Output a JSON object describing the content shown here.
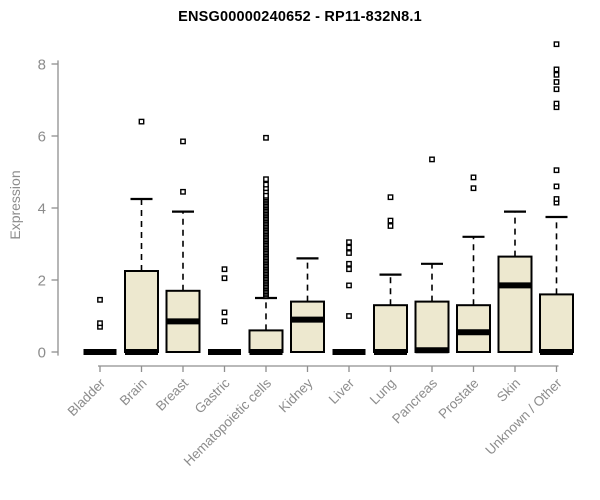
{
  "page": {
    "background": "#ffffff"
  },
  "chart_data": {
    "type": "boxplot",
    "title": "ENSG00000240652 - RP11-832N8.1",
    "ylabel": "Expression",
    "ylim": [
      0,
      8.8
    ],
    "yticks": [
      0,
      2,
      4,
      6,
      8
    ],
    "grid": false,
    "legend": "none",
    "categories": [
      "Bladder",
      "Brain",
      "Breast",
      "Gastric",
      "Hematopoietic cells",
      "Kidney",
      "Liver",
      "Lung",
      "Pancreas",
      "Prostate",
      "Skin",
      "Unknown / Other"
    ],
    "series": [
      {
        "category": "Bladder",
        "q1": 0,
        "median": 0,
        "q3": 0,
        "whisker_low": 0,
        "whisker_high": 0,
        "outliers": [
          0.7,
          0.8,
          1.45
        ]
      },
      {
        "category": "Brain",
        "q1": 0,
        "median": 0,
        "q3": 2.25,
        "whisker_low": 0,
        "whisker_high": 4.25,
        "outliers": [
          6.4
        ]
      },
      {
        "category": "Breast",
        "q1": 0,
        "median": 0.85,
        "q3": 1.7,
        "whisker_low": 0,
        "whisker_high": 3.9,
        "outliers": [
          4.45,
          5.85
        ]
      },
      {
        "category": "Gastric",
        "q1": 0,
        "median": 0,
        "q3": 0,
        "whisker_low": 0,
        "whisker_high": 0,
        "outliers": [
          0.85,
          1.1,
          2.05,
          2.3
        ]
      },
      {
        "category": "Hematopoietic cells",
        "q1": 0,
        "median": 0,
        "q3": 0.6,
        "whisker_low": 0,
        "whisker_high": 1.5,
        "outliers": [
          4.45,
          4.55,
          4.65,
          4.8,
          5.95
        ],
        "outlier_band": [
          1.55,
          4.35
        ]
      },
      {
        "category": "Kidney",
        "q1": 0,
        "median": 0.9,
        "q3": 1.4,
        "whisker_low": 0,
        "whisker_high": 2.6,
        "outliers": []
      },
      {
        "category": "Liver",
        "q1": 0,
        "median": 0,
        "q3": 0,
        "whisker_low": 0,
        "whisker_high": 0,
        "outliers": [
          1.0,
          1.85,
          2.3,
          2.45,
          2.75,
          2.9,
          3.05
        ]
      },
      {
        "category": "Lung",
        "q1": 0,
        "median": 0,
        "q3": 1.3,
        "whisker_low": 0,
        "whisker_high": 2.15,
        "outliers": [
          3.5,
          3.65,
          4.3
        ]
      },
      {
        "category": "Pancreas",
        "q1": 0,
        "median": 0.05,
        "q3": 1.4,
        "whisker_low": 0,
        "whisker_high": 2.45,
        "outliers": [
          5.35
        ]
      },
      {
        "category": "Prostate",
        "q1": 0,
        "median": 0.55,
        "q3": 1.3,
        "whisker_low": 0,
        "whisker_high": 3.2,
        "outliers": [
          4.55,
          4.85
        ]
      },
      {
        "category": "Skin",
        "q1": 0,
        "median": 1.85,
        "q3": 2.65,
        "whisker_low": 0,
        "whisker_high": 3.9,
        "outliers": []
      },
      {
        "category": "Unknown / Other",
        "q1": 0,
        "median": 0,
        "q3": 1.6,
        "whisker_low": 0,
        "whisker_high": 3.75,
        "outliers": [
          4.15,
          4.25,
          4.6,
          5.05,
          6.8,
          6.9,
          7.3,
          7.5,
          7.7,
          7.85,
          8.55
        ]
      }
    ],
    "colors": {
      "box_fill": "#EDE8CF",
      "box_stroke": "#000000",
      "whisker": "#000000",
      "median": "#000000",
      "outlier_stroke": "#000000",
      "axis": "#8f8f8f",
      "tick_label": "#8c8c8c",
      "title": "#000000"
    }
  }
}
